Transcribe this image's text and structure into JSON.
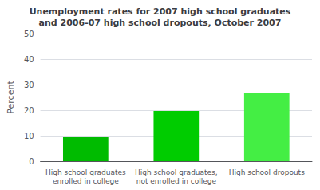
{
  "chart_data": {
    "type": "bar",
    "title": "Unemployment rates for 2007 high school graduates\nand 2006-07 high school dropouts, October 2007",
    "categories": [
      "High school graduates\nenrolled in college",
      "High school graduates,\nnot enrolled in college",
      "High school dropouts"
    ],
    "values": [
      9.7,
      19.7,
      26.9
    ],
    "colors": [
      "#00bb00",
      "#00cc00",
      "#44ee44"
    ],
    "ylabel": "Percent",
    "ylim": [
      0,
      50
    ],
    "yticks": [
      0,
      10,
      20,
      30,
      40,
      50
    ],
    "grid": true
  }
}
